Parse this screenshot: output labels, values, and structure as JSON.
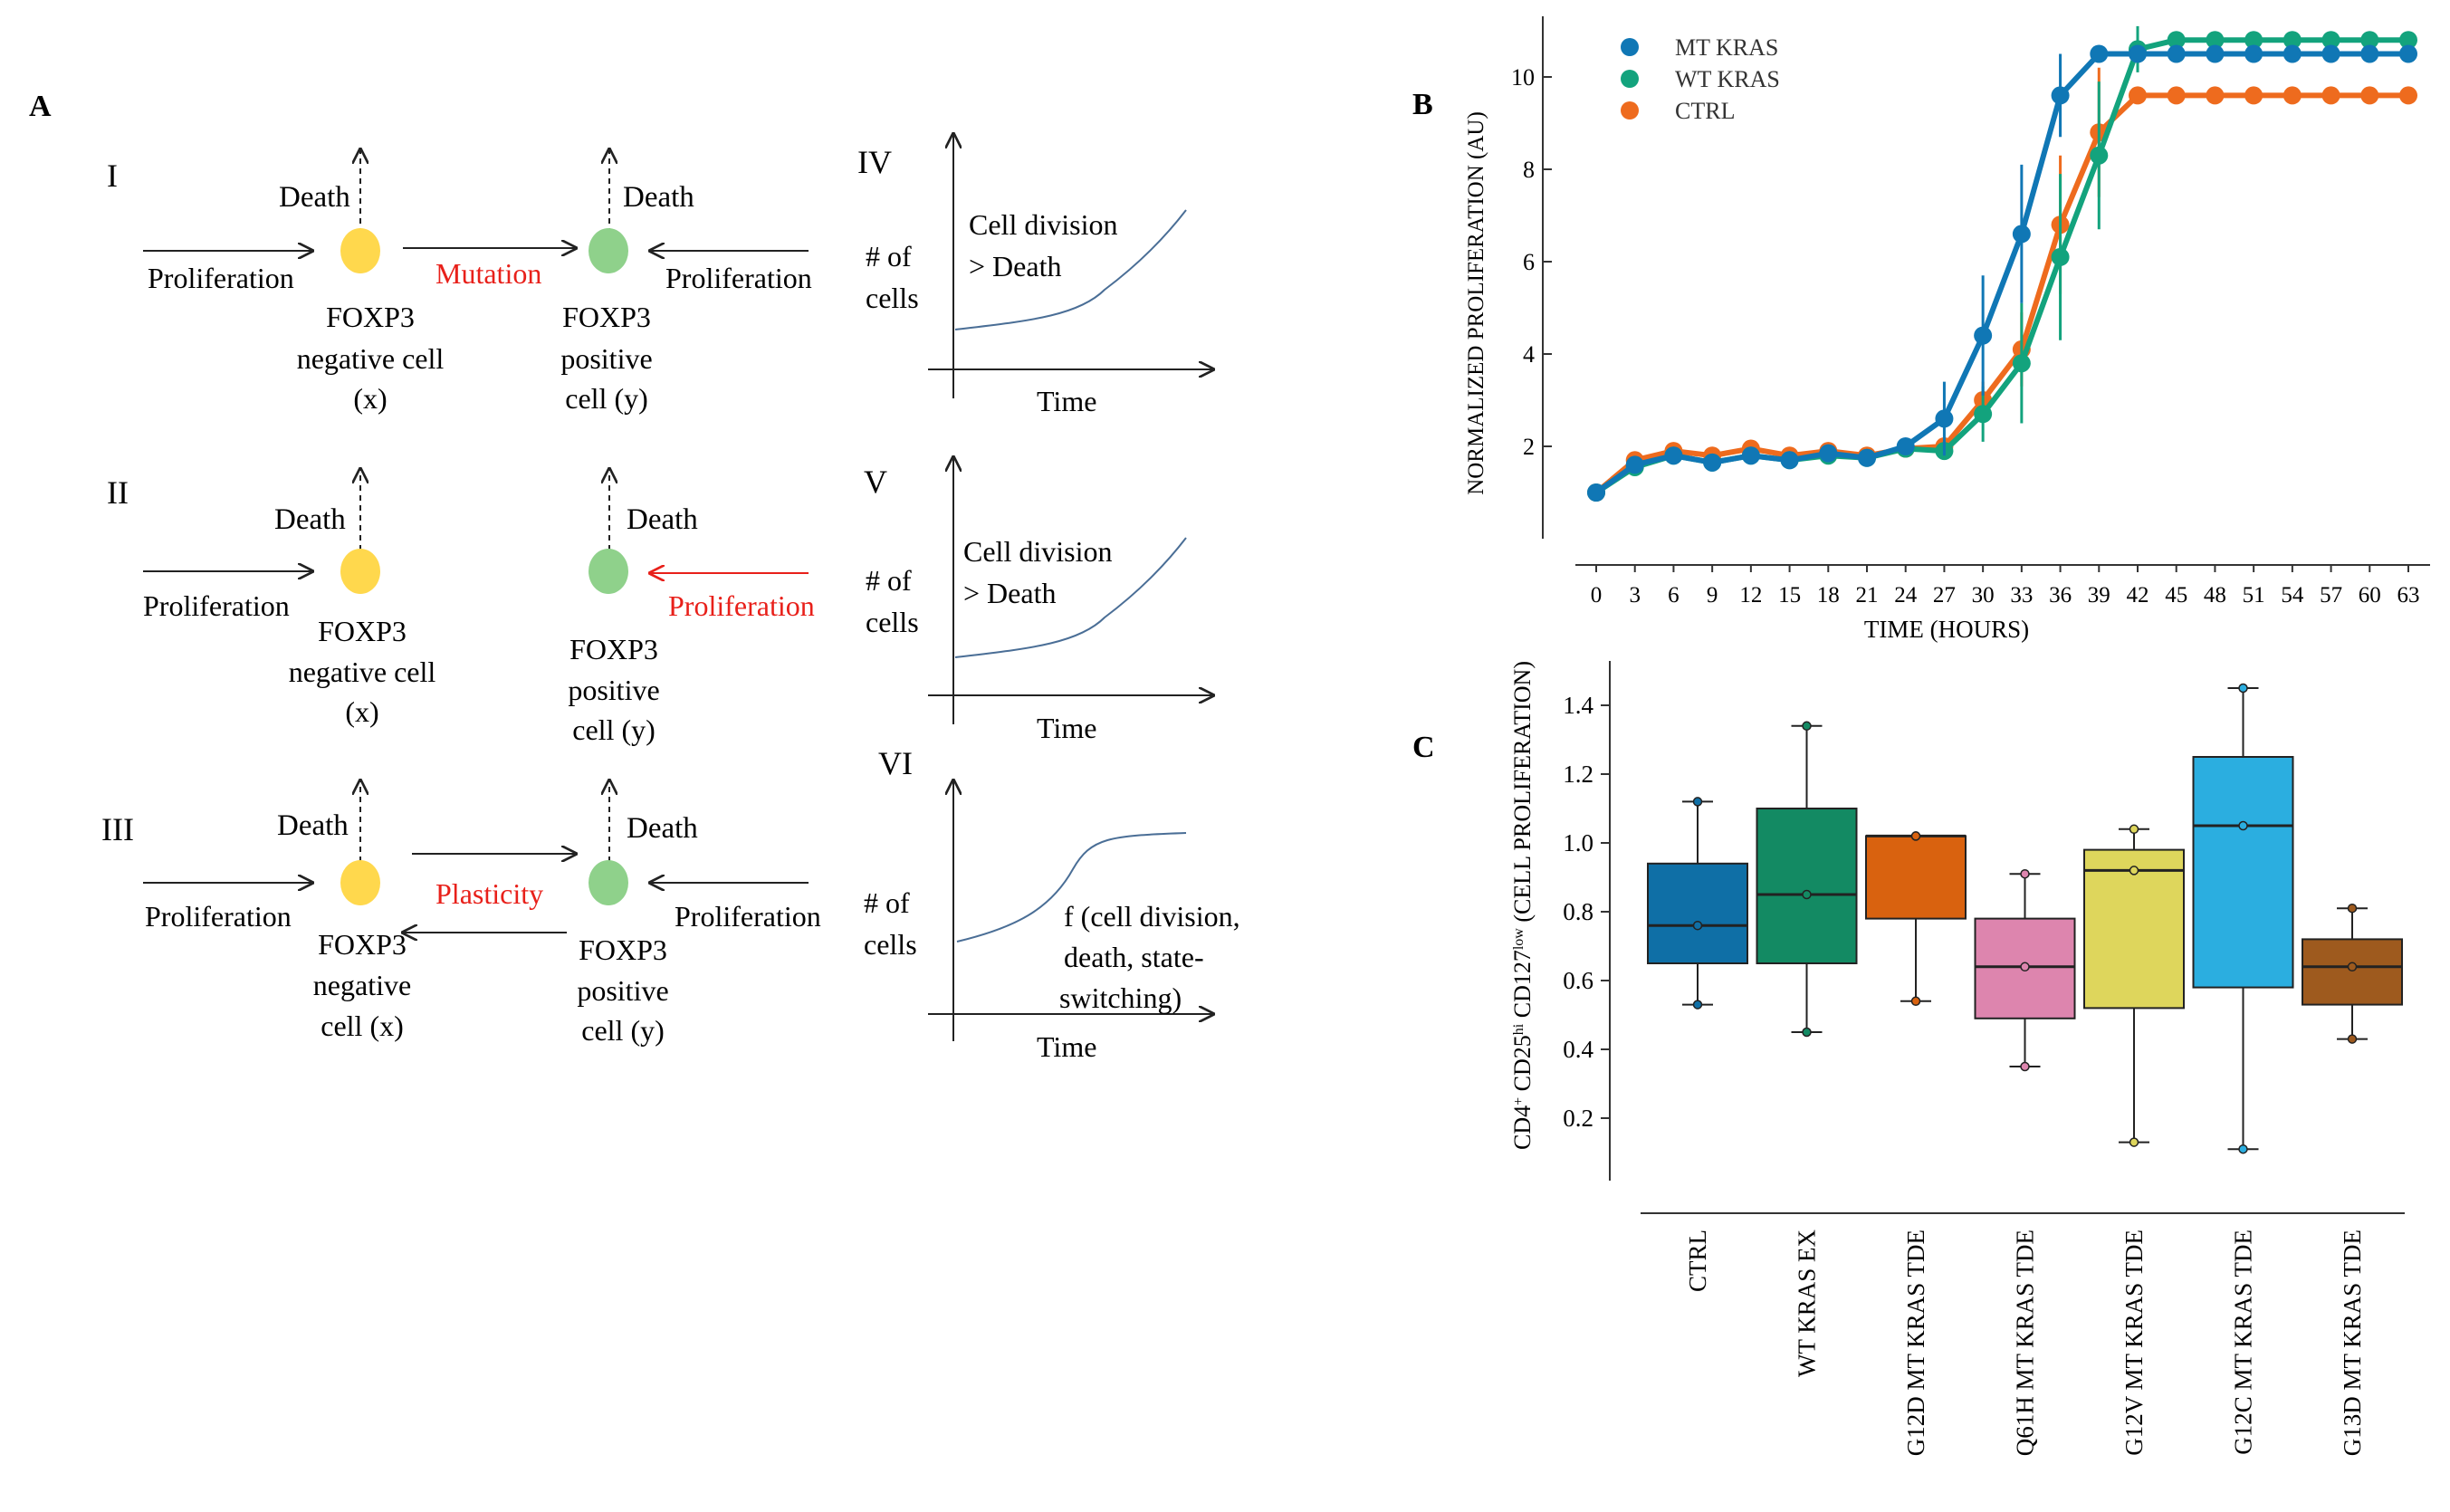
{
  "panel_labels": {
    "a": "A",
    "b": "B",
    "c": "C"
  },
  "panel_a": {
    "rows": [
      {
        "roman": "I",
        "death_left": "Death",
        "death_right": "Death",
        "prolif_left": "Proliferation",
        "prolif_right": "Proliferation",
        "transition": "Mutation",
        "neg_label": [
          "FOXP3",
          "negative cell",
          "(x)"
        ],
        "pos_label": [
          "FOXP3",
          "positive",
          "cell (y)"
        ]
      },
      {
        "roman": "II",
        "death_left": "Death",
        "death_right": "Death",
        "prolif_left": "Proliferation",
        "prolif_right": "Proliferation",
        "neg_label": [
          "FOXP3",
          "negative cell",
          "(x)"
        ],
        "pos_label": [
          "FOXP3",
          "positive",
          "cell (y)"
        ]
      },
      {
        "roman": "III",
        "death_left": "Death",
        "death_right": "Death",
        "prolif_left": "Proliferation",
        "prolif_right": "Proliferation",
        "transition": "Plasticity",
        "neg_label": [
          "FOXP3",
          "negative",
          "cell (x)"
        ],
        "pos_label": [
          "FOXP3",
          "positive",
          "cell (y)"
        ]
      }
    ],
    "curves": [
      {
        "roman": "IV",
        "ylabel": [
          "# of",
          "cells"
        ],
        "xlabel": "Time",
        "note": [
          "Cell division",
          "> Death"
        ]
      },
      {
        "roman": "V",
        "ylabel": [
          "# of",
          "cells"
        ],
        "xlabel": "Time",
        "note": [
          "Cell division",
          "> Death"
        ]
      },
      {
        "roman": "VI",
        "ylabel": [
          "# of",
          "cells"
        ],
        "xlabel": "Time",
        "note": [
          "f (cell  division,",
          "death, state-",
          "switching)"
        ]
      }
    ],
    "colors": {
      "negative_cell": "#FFD84D",
      "positive_cell": "#8FD18B",
      "highlight": "#E8201A",
      "curve": "#4A6E96"
    }
  },
  "chart_data": [
    {
      "type": "line",
      "title": "",
      "xlabel": "TIME (HOURS)",
      "ylabel": "NORMALIZED PROLIFERATION (AU)",
      "x": [
        0,
        3,
        6,
        9,
        12,
        15,
        18,
        21,
        24,
        27,
        30,
        33,
        36,
        39,
        42,
        45,
        48,
        51,
        54,
        57,
        60,
        63
      ],
      "ylim": [
        0,
        11.2
      ],
      "yticks": [
        2,
        4,
        6,
        8,
        10
      ],
      "legend_position": "top-left",
      "series": [
        {
          "name": "MT KRAS",
          "color": "#1077B5",
          "values": [
            1.0,
            1.6,
            1.8,
            1.65,
            1.8,
            1.7,
            1.85,
            1.75,
            2.0,
            2.6,
            4.4,
            6.6,
            9.6,
            10.5,
            10.5,
            10.5,
            10.5,
            10.5,
            10.5,
            10.5,
            10.5,
            10.5
          ],
          "errors": [
            0,
            0,
            0,
            0,
            0,
            0,
            0,
            0,
            0,
            0.8,
            1.3,
            1.5,
            0.9,
            0,
            0,
            0,
            0,
            0,
            0,
            0,
            0,
            0
          ]
        },
        {
          "name": "WT KRAS",
          "color": "#13A37D",
          "values": [
            1.0,
            1.55,
            1.8,
            1.65,
            1.8,
            1.7,
            1.8,
            1.75,
            1.95,
            1.9,
            2.7,
            3.8,
            6.1,
            8.3,
            10.6,
            10.8,
            10.8,
            10.8,
            10.8,
            10.8,
            10.8,
            10.8
          ],
          "errors": [
            0,
            0,
            0,
            0,
            0,
            0,
            0,
            0,
            0,
            0,
            0.6,
            1.3,
            1.8,
            1.6,
            0.5,
            0,
            0,
            0,
            0,
            0,
            0,
            0
          ]
        },
        {
          "name": "CTRL",
          "color": "#EE6B1E",
          "values": [
            1.0,
            1.7,
            1.9,
            1.8,
            1.95,
            1.8,
            1.9,
            1.8,
            1.95,
            2.0,
            3.0,
            4.1,
            6.8,
            8.8,
            9.6,
            9.6,
            9.6,
            9.6,
            9.6,
            9.6,
            9.6,
            9.6
          ],
          "errors": [
            0,
            0,
            0,
            0,
            0,
            0,
            0,
            0,
            0,
            0,
            0.4,
            0.8,
            1.5,
            1.4,
            0,
            0,
            0,
            0,
            0,
            0,
            0,
            0
          ]
        }
      ]
    },
    {
      "type": "box",
      "title": "",
      "xlabel": "",
      "ylabel_parts": [
        "CD4",
        "+",
        " CD25",
        "hi",
        " CD127",
        "low",
        " (CELL PROLIFERATION)"
      ],
      "ylim": [
        0.1,
        1.5
      ],
      "yticks": [
        0.2,
        0.4,
        0.6,
        0.8,
        1.0,
        1.2,
        1.4
      ],
      "ytick_labels": [
        "0.2",
        "0.4",
        "0.6",
        "0.8",
        "1.0",
        "1.2",
        "1.4"
      ],
      "categories": [
        "CTRL",
        "WT KRAS EX",
        "G12D MT KRAS TDE",
        "Q61H MT KRAS TDE",
        "G12V MT KRAS TDE",
        "G12C MT KRAS TDE",
        "G13D MT KRAS TDE"
      ],
      "boxes": [
        {
          "min": 0.53,
          "q1": 0.65,
          "median": 0.76,
          "q3": 0.94,
          "max": 1.12,
          "color": "#0F6FA6"
        },
        {
          "min": 0.45,
          "q1": 0.65,
          "median": 0.85,
          "q3": 1.1,
          "max": 1.34,
          "color": "#138A63"
        },
        {
          "min": 0.54,
          "q1": 0.78,
          "median": 1.02,
          "q3": 1.02,
          "max": 1.02,
          "color": "#D9620F"
        },
        {
          "min": 0.35,
          "q1": 0.49,
          "median": 0.64,
          "q3": 0.78,
          "max": 0.91,
          "color": "#DD85AE"
        },
        {
          "min": 0.13,
          "q1": 0.52,
          "median": 0.92,
          "q3": 0.98,
          "max": 1.04,
          "color": "#DED65C"
        },
        {
          "min": 0.11,
          "q1": 0.58,
          "median": 1.05,
          "q3": 1.25,
          "max": 1.45,
          "color": "#2BAEE0"
        },
        {
          "min": 0.43,
          "q1": 0.53,
          "median": 0.64,
          "q3": 0.72,
          "max": 0.81,
          "color": "#9E5A1E"
        }
      ]
    }
  ]
}
